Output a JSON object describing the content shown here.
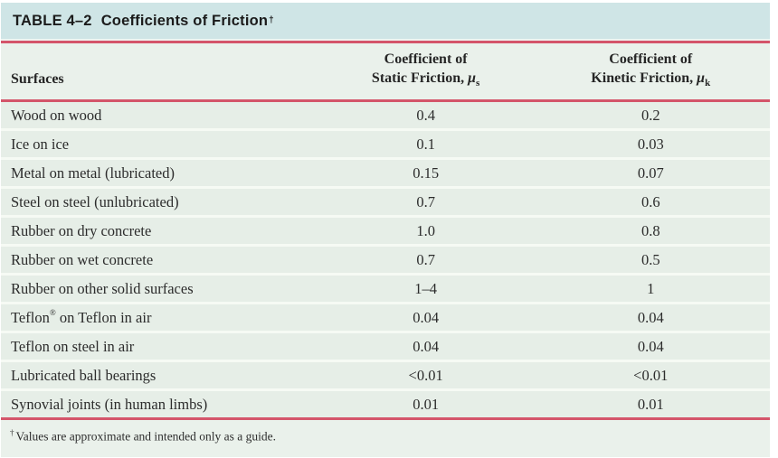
{
  "title": {
    "label": "TABLE 4–2",
    "text": "Coefficients of Friction",
    "dagger": "†"
  },
  "columns": {
    "surfaces": "Surfaces",
    "static": {
      "line1": "Coefficient of",
      "line2": "Static Friction, ",
      "symbol": "μ",
      "subscript": "s"
    },
    "kinetic": {
      "line1": "Coefficient of",
      "line2": "Kinetic Friction, ",
      "symbol": "μ",
      "subscript": "k"
    }
  },
  "rows": [
    {
      "surface": "Wood on wood",
      "static": "0.4",
      "kinetic": "0.2"
    },
    {
      "surface": "Ice on ice",
      "static": "0.1",
      "kinetic": "0.03"
    },
    {
      "surface": "Metal on metal (lubricated)",
      "static": "0.15",
      "kinetic": "0.07"
    },
    {
      "surface": "Steel on steel (unlubricated)",
      "static": "0.7",
      "kinetic": "0.6"
    },
    {
      "surface": "Rubber on dry concrete",
      "static": "1.0",
      "kinetic": "0.8"
    },
    {
      "surface": "Rubber on wet concrete",
      "static": "0.7",
      "kinetic": "0.5"
    },
    {
      "surface": "Rubber on other solid surfaces",
      "static": "1–4",
      "kinetic": "1"
    },
    {
      "surface": "Teflon® on Teflon in air",
      "static": "0.04",
      "kinetic": "0.04"
    },
    {
      "surface": "Teflon on steel in air",
      "static": "0.04",
      "kinetic": "0.04"
    },
    {
      "surface": "Lubricated ball bearings",
      "static": "<0.01",
      "kinetic": "<0.01"
    },
    {
      "surface": "Synovial joints (in human limbs)",
      "static": "0.01",
      "kinetic": "0.01"
    }
  ],
  "footnote": {
    "symbol": "†",
    "text": "Values are approximate and intended only as a guide."
  },
  "colors": {
    "title_band": "#cfe5e6",
    "section_bg": "#eaf1eb",
    "row_bg": "#e6eee7",
    "row_separator": "#f6faf4",
    "rule_red": "#d4556a",
    "text": "#2c2c2c"
  },
  "chart_data": {
    "type": "table",
    "title": "TABLE 4–2 Coefficients of Friction†",
    "columns": [
      "Surfaces",
      "Coefficient of Static Friction, μs",
      "Coefficient of Kinetic Friction, μk"
    ],
    "rows": [
      [
        "Wood on wood",
        "0.4",
        "0.2"
      ],
      [
        "Ice on ice",
        "0.1",
        "0.03"
      ],
      [
        "Metal on metal (lubricated)",
        "0.15",
        "0.07"
      ],
      [
        "Steel on steel (unlubricated)",
        "0.7",
        "0.6"
      ],
      [
        "Rubber on dry concrete",
        "1.0",
        "0.8"
      ],
      [
        "Rubber on wet concrete",
        "0.7",
        "0.5"
      ],
      [
        "Rubber on other solid surfaces",
        "1–4",
        "1"
      ],
      [
        "Teflon® on Teflon in air",
        "0.04",
        "0.04"
      ],
      [
        "Teflon on steel in air",
        "0.04",
        "0.04"
      ],
      [
        "Lubricated ball bearings",
        "<0.01",
        "<0.01"
      ],
      [
        "Synovial joints (in human limbs)",
        "0.01",
        "0.01"
      ]
    ],
    "footnote": "† Values are approximate and intended only as a guide."
  }
}
